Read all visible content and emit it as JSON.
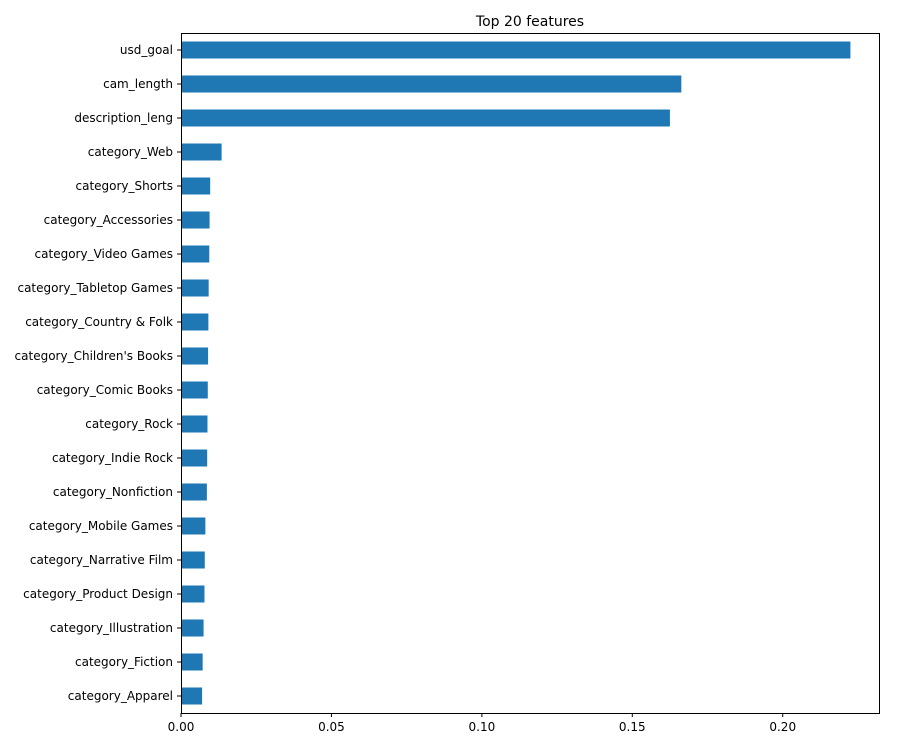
{
  "chart_data": {
    "type": "bar",
    "orientation": "horizontal",
    "title": "Top 20 features",
    "xlabel": "",
    "ylabel": "",
    "xlim": [
      0,
      0.232
    ],
    "xticks": [
      0.0,
      0.05,
      0.1,
      0.15,
      0.2
    ],
    "xtick_labels": [
      "0.00",
      "0.05",
      "0.10",
      "0.15",
      "0.20"
    ],
    "grid": false,
    "bar_color": "#1f77b4",
    "categories": [
      "usd_goal",
      "cam_length",
      "description_leng",
      "category_Web",
      "category_Shorts",
      "category_Accessories",
      "category_Video Games",
      "category_Tabletop Games",
      "category_Country & Folk",
      "category_Children's Books",
      "category_Comic Books",
      "category_Rock",
      "category_Indie Rock",
      "category_Nonfiction",
      "category_Mobile Games",
      "category_Narrative Film",
      "category_Product Design",
      "category_Illustration",
      "category_Fiction",
      "category_Apparel"
    ],
    "values": [
      0.2225,
      0.1663,
      0.1625,
      0.0135,
      0.0097,
      0.0095,
      0.0094,
      0.0092,
      0.0091,
      0.009,
      0.0089,
      0.0088,
      0.0087,
      0.0086,
      0.0081,
      0.0079,
      0.0078,
      0.0075,
      0.0072,
      0.007
    ]
  }
}
